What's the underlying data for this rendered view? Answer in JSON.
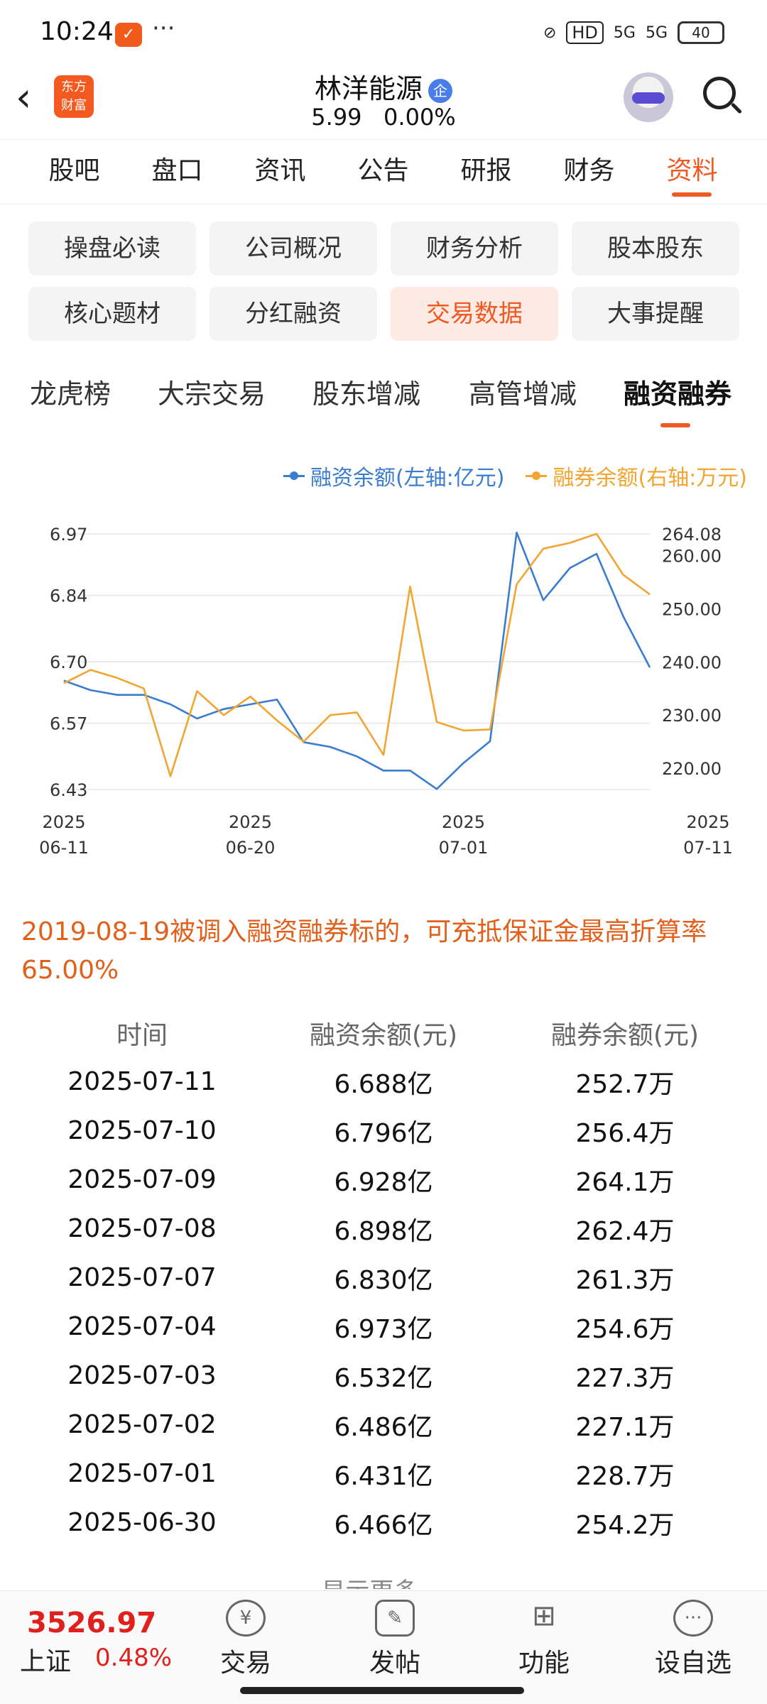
{
  "status_bar": {
    "time": "10:24",
    "app_badge": "✓",
    "more": "···",
    "hd": "HD",
    "sig1": "5G",
    "sig2": "5G",
    "battery": "40"
  },
  "header": {
    "logo_line1": "东方",
    "logo_line2": "财富",
    "stock_name": "林洋能源",
    "badge": "企",
    "price": "5.99",
    "change": "0.00%"
  },
  "main_tabs": [
    "股吧",
    "盘口",
    "资讯",
    "公告",
    "研报",
    "财务",
    "资料"
  ],
  "sub_buttons": [
    "操盘必读",
    "公司概况",
    "财务分析",
    "股本股东",
    "核心题材",
    "分红融资",
    "交易数据",
    "大事提醒"
  ],
  "third_tabs": [
    "龙虎榜",
    "大宗交易",
    "股东增减",
    "高管增减",
    "融资融券"
  ],
  "colors": {
    "accent": "#ee5a24",
    "blue": "#3a7dd0",
    "orange": "#f2a530"
  },
  "chart_data": {
    "type": "line",
    "left_ticks": [
      "6.97",
      "6.84",
      "6.70",
      "6.57",
      "6.43"
    ],
    "right_ticks": [
      "264.08",
      "260.00",
      "250.00",
      "240.00",
      "230.00",
      "220.00"
    ],
    "left_ylim": [
      6.43,
      6.97
    ],
    "right_ylim": [
      216,
      264.08
    ],
    "x_ticks": [
      [
        "2025",
        "06-11"
      ],
      [
        "2025",
        "06-20"
      ],
      [
        "2025",
        "07-01"
      ],
      [
        "2025",
        "07-11"
      ]
    ],
    "series": [
      {
        "name": "融资余额(左轴:亿元)",
        "axis": "left",
        "values": [
          6.66,
          6.64,
          6.63,
          6.63,
          6.61,
          6.58,
          6.6,
          6.61,
          6.62,
          6.53,
          6.52,
          6.5,
          6.47,
          6.47,
          6.431,
          6.486,
          6.532,
          6.973,
          6.83,
          6.898,
          6.928,
          6.796,
          6.688
        ]
      },
      {
        "name": "融券余额(右轴:万元)",
        "axis": "right",
        "values": [
          236,
          238.5,
          237,
          235,
          218.5,
          234.5,
          230,
          233.5,
          229,
          225,
          230,
          230.5,
          222.5,
          254.2,
          228.7,
          227.1,
          227.3,
          254.6,
          261.3,
          262.4,
          264.1,
          256.4,
          252.7
        ]
      }
    ]
  },
  "note": "2019-08-19被调入融资融券标的，可充抵保证金最高折算率65.00%",
  "table": {
    "headers": [
      "时间",
      "融资余额(元)",
      "融券余额(元)"
    ],
    "rows": [
      [
        "2025-07-11",
        "6.688亿",
        "252.7万"
      ],
      [
        "2025-07-10",
        "6.796亿",
        "256.4万"
      ],
      [
        "2025-07-09",
        "6.928亿",
        "264.1万"
      ],
      [
        "2025-07-08",
        "6.898亿",
        "262.4万"
      ],
      [
        "2025-07-07",
        "6.830亿",
        "261.3万"
      ],
      [
        "2025-07-04",
        "6.973亿",
        "254.6万"
      ],
      [
        "2025-07-03",
        "6.532亿",
        "227.3万"
      ],
      [
        "2025-07-02",
        "6.486亿",
        "227.1万"
      ],
      [
        "2025-07-01",
        "6.431亿",
        "228.7万"
      ],
      [
        "2025-06-30",
        "6.466亿",
        "254.2万"
      ]
    ]
  },
  "show_more": "显示更多 ⌄",
  "bottom_bar": {
    "index_value": "3526.97",
    "index_name": "上证",
    "index_change": "0.48%",
    "items": [
      {
        "label": "交易",
        "icon": "¥"
      },
      {
        "label": "发帖",
        "icon": "✎"
      },
      {
        "label": "功能",
        "icon": "⊞"
      },
      {
        "label": "设自选",
        "icon": "···"
      }
    ]
  }
}
